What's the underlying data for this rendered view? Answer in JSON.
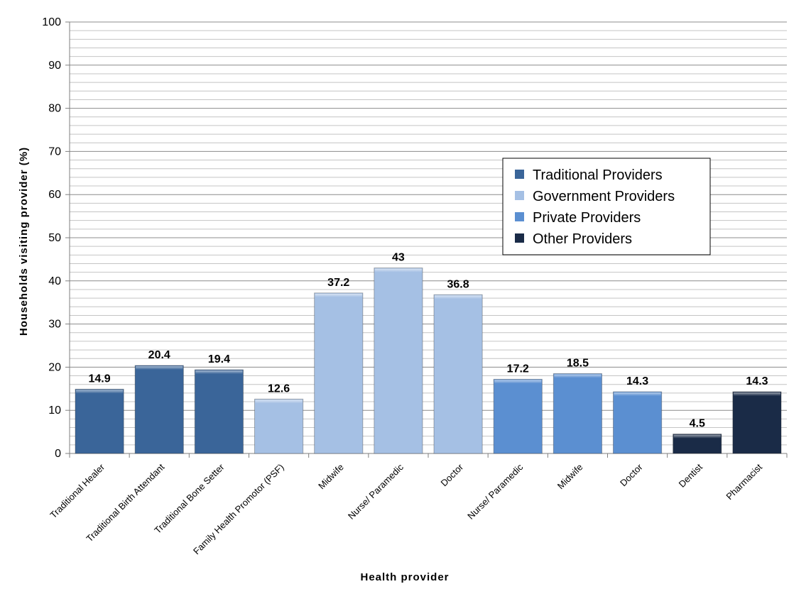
{
  "chart_data": {
    "type": "bar",
    "xlabel": "Health provider",
    "ylabel": "Households visiting provider (%)",
    "ylim": [
      0,
      100
    ],
    "major_tick_step": 10,
    "minor_gridline_step": 2,
    "grid": true,
    "legend_position": "right-center",
    "categories": [
      "Traditional Healer",
      "Traditional Birth Attendant",
      "Traditional Bone Setter",
      "Family Health Promotor (PSF)",
      "Midwife",
      "Nurse/ Paramedic",
      "Doctor",
      "Nurse/ Paramedic",
      "Midwife",
      "Doctor",
      "Dentist",
      "Pharmacist"
    ],
    "values": [
      14.9,
      20.4,
      19.4,
      12.6,
      37.2,
      43,
      36.8,
      17.2,
      18.5,
      14.3,
      4.5,
      14.3
    ],
    "value_labels": [
      "14.9",
      "20.4",
      "19.4",
      "12.6",
      "37.2",
      "43",
      "36.8",
      "17.2",
      "18.5",
      "14.3",
      "4.5",
      "14.3"
    ],
    "groups": [
      0,
      0,
      0,
      1,
      1,
      1,
      1,
      2,
      2,
      2,
      3,
      3
    ],
    "legend": [
      {
        "name": "Traditional Providers",
        "color": "#3a6599"
      },
      {
        "name": "Government Providers",
        "color": "#a5c0e4"
      },
      {
        "name": "Private Providers",
        "color": "#5b8fd1"
      },
      {
        "name": "Other Providers",
        "color": "#1a2b47"
      }
    ]
  }
}
